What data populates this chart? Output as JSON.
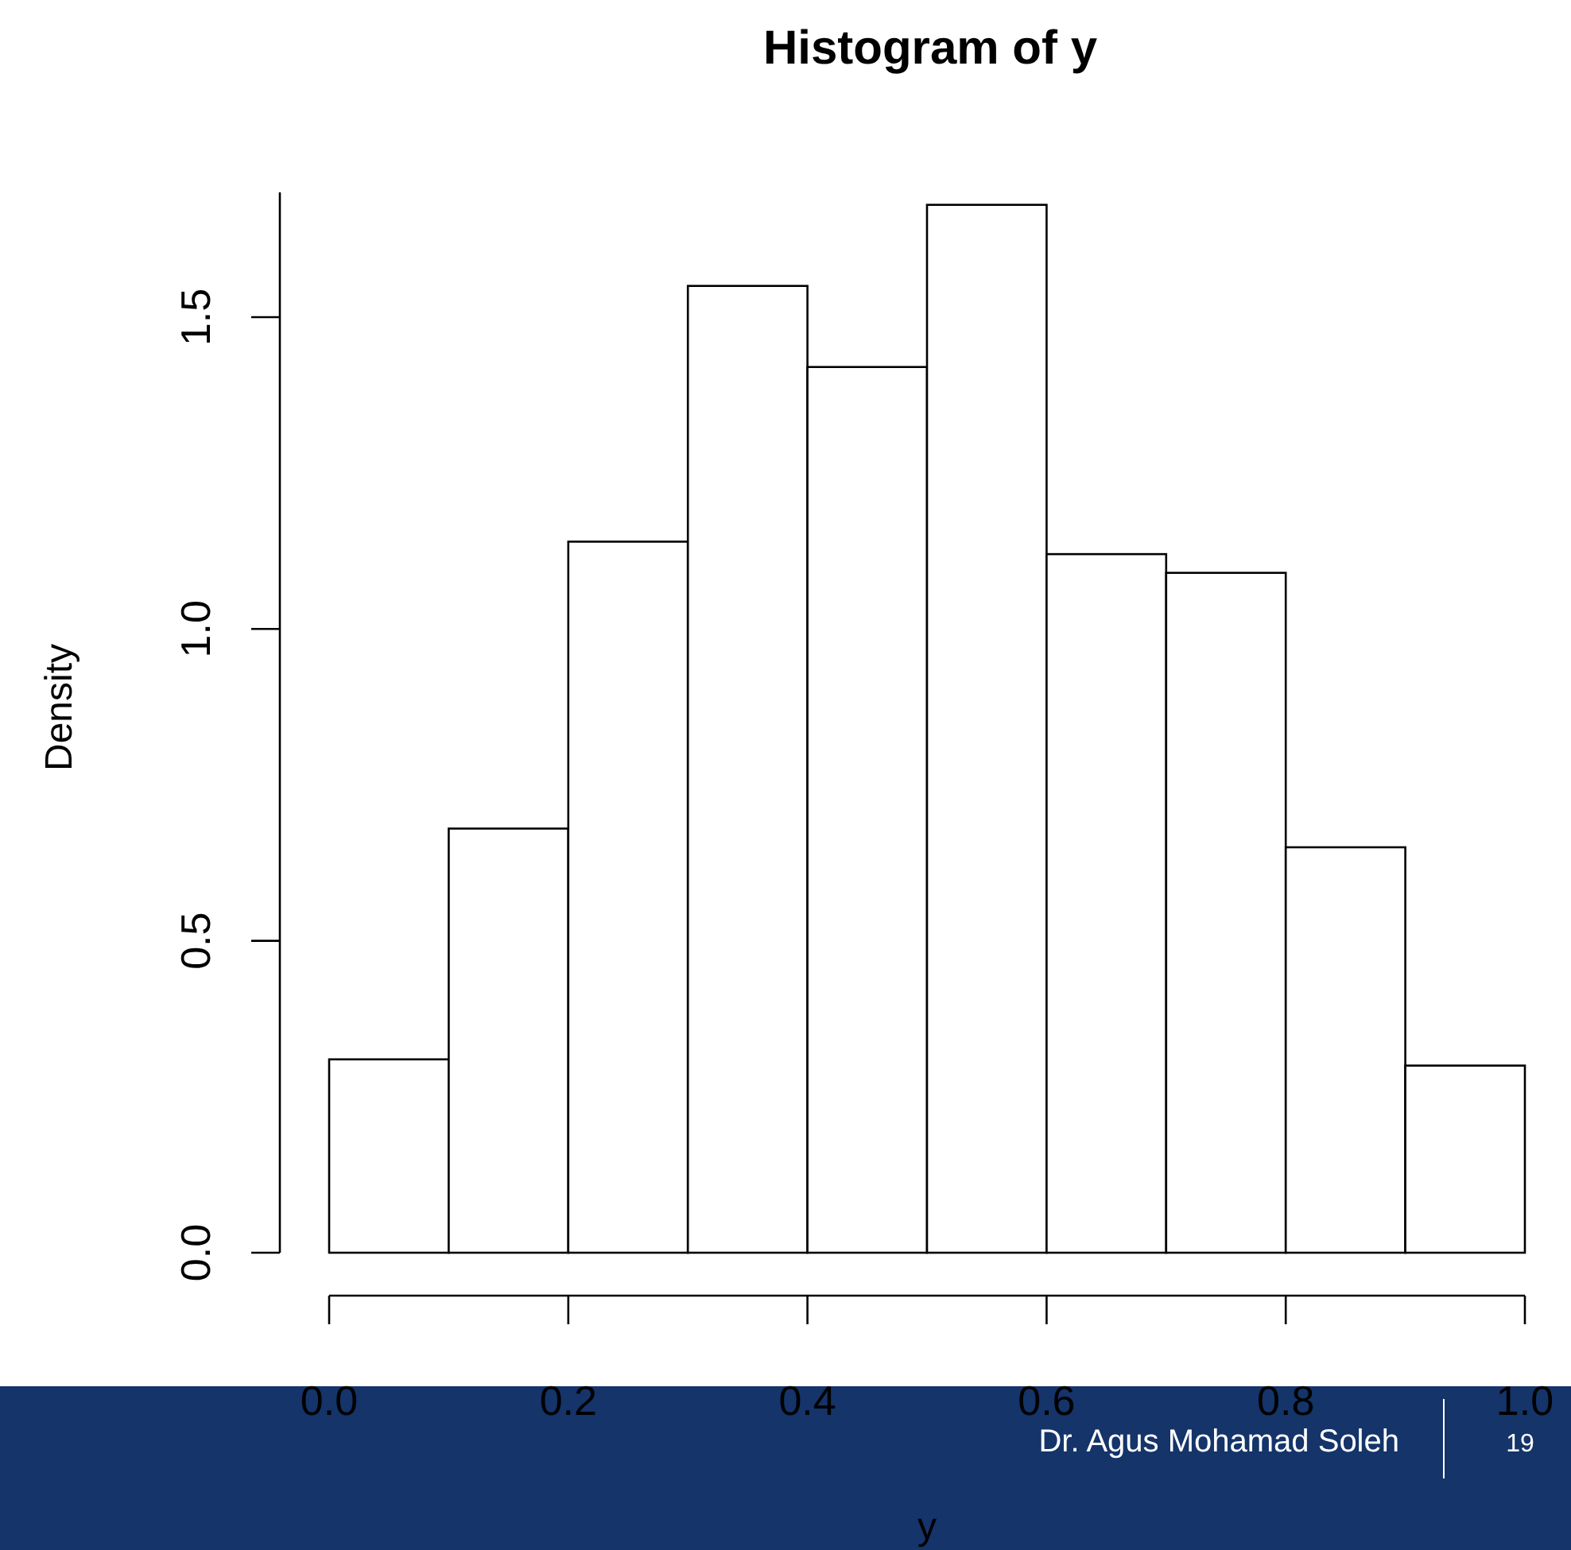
{
  "chart_data": {
    "type": "histogram",
    "title": "Histogram of y",
    "xlabel": "y",
    "ylabel": "Density",
    "bins": [
      0,
      0.1,
      0.2,
      0.3,
      0.4,
      0.5,
      0.6,
      0.7,
      0.8,
      0.9,
      1.0
    ],
    "values": [
      0.31,
      0.68,
      1.14,
      1.55,
      1.42,
      1.68,
      1.12,
      1.09,
      0.65,
      0.3
    ],
    "color": "#ffffff",
    "xlim": [
      0,
      1
    ],
    "xticks": [
      {
        "value": 0,
        "label": "0.0"
      },
      {
        "value": 0.2,
        "label": "0.2"
      },
      {
        "value": 0.4,
        "label": "0.4"
      },
      {
        "value": 0.6,
        "label": "0.6"
      },
      {
        "value": 0.8,
        "label": "0.8"
      },
      {
        "value": 1,
        "label": "1.0"
      }
    ],
    "ylim": [
      0,
      1.7
    ],
    "yticks": [
      {
        "value": 0,
        "label": "0.0"
      },
      {
        "value": 0.5,
        "label": "0.5"
      },
      {
        "value": 1,
        "label": "1.0"
      },
      {
        "value": 1.5,
        "label": "1.5"
      }
    ],
    "grid": false,
    "annotations": [
      "Dr. Agus Mohamad Soleh",
      "19"
    ]
  }
}
